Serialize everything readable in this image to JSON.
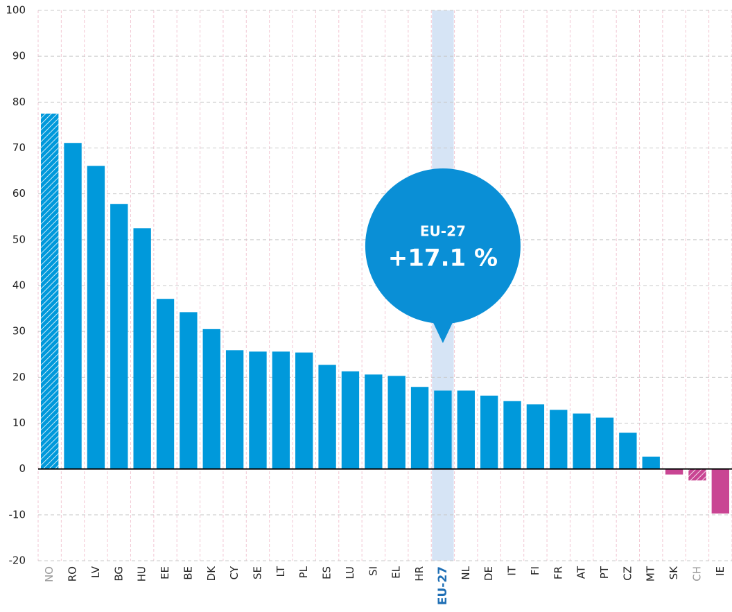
{
  "chart_data": {
    "type": "bar",
    "categories": [
      "NO",
      "RO",
      "LV",
      "BG",
      "HU",
      "EE",
      "BE",
      "DK",
      "CY",
      "SE",
      "LT",
      "PL",
      "ES",
      "LU",
      "SI",
      "EL",
      "HR",
      "EU-27",
      "NL",
      "DE",
      "IT",
      "FI",
      "FR",
      "AT",
      "PT",
      "CZ",
      "MT",
      "SK",
      "CH",
      "IE"
    ],
    "values": [
      77.5,
      71.1,
      66.1,
      57.8,
      52.5,
      37.1,
      34.2,
      30.5,
      25.9,
      25.6,
      25.6,
      25.4,
      22.7,
      21.3,
      20.6,
      20.3,
      17.9,
      17.1,
      17.1,
      16.0,
      14.8,
      14.1,
      12.9,
      12.1,
      11.2,
      7.9,
      2.7,
      -1.2,
      -2.5,
      -9.7
    ],
    "color_positive": "#0099db",
    "color_negative": "#c94593",
    "hatched": [
      "NO",
      "CH"
    ],
    "highlight": "EU-27",
    "annotation": {
      "label": "EU-27",
      "text": "+17.1 %"
    },
    "ylim": [
      -20,
      100
    ],
    "yticks": [
      -20,
      -10,
      0,
      10,
      20,
      30,
      40,
      50,
      60,
      70,
      80,
      90,
      100
    ],
    "grid": true
  }
}
